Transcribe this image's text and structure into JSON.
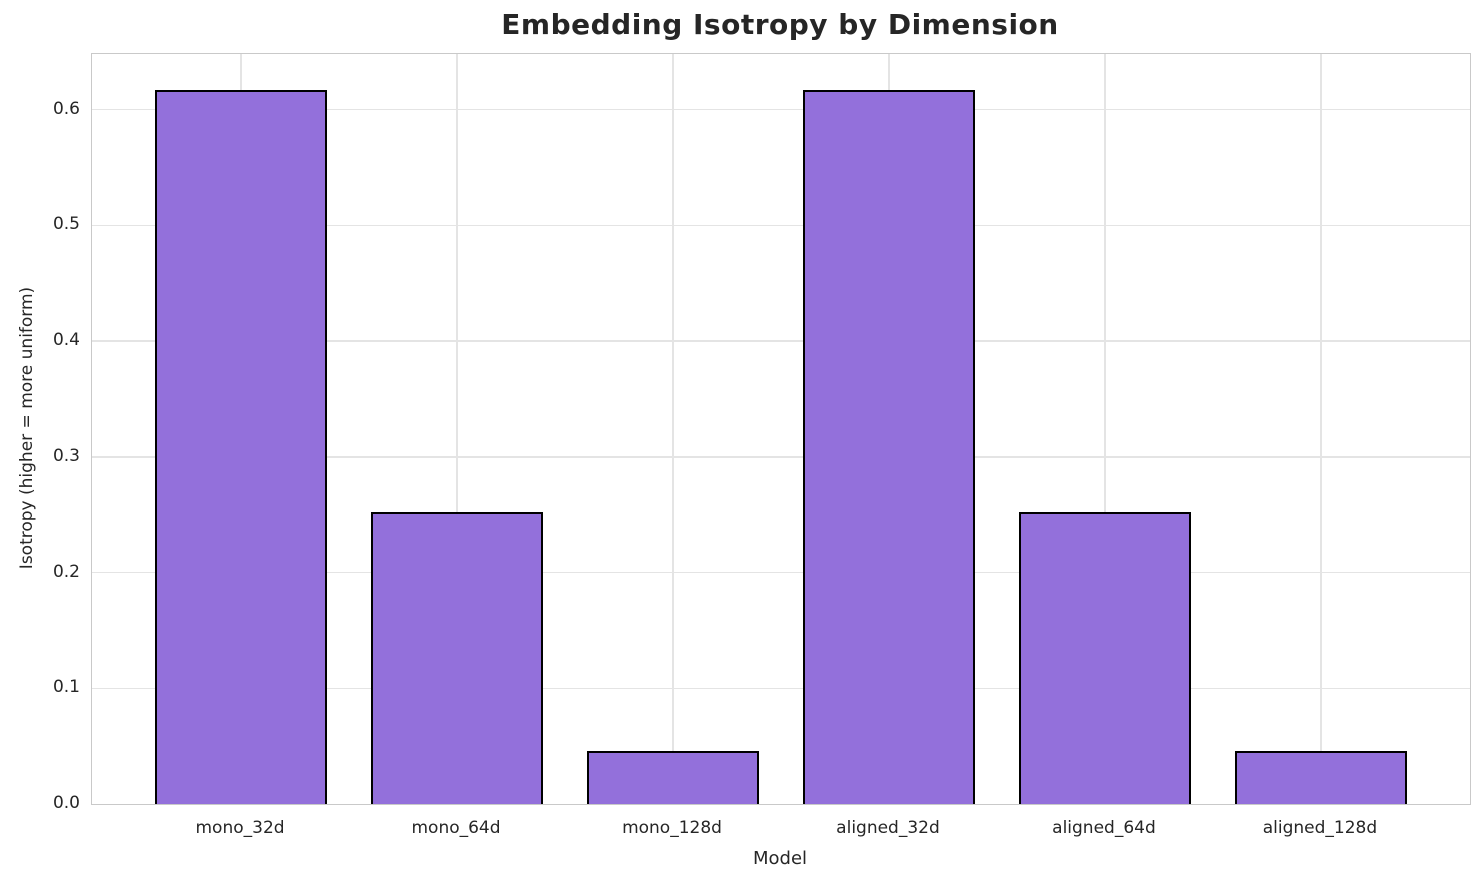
{
  "chart_data": {
    "type": "bar",
    "title": "Embedding Isotropy by Dimension",
    "xlabel": "Model",
    "ylabel": "Isotropy (higher = more uniform)",
    "categories": [
      "mono_32d",
      "mono_64d",
      "mono_128d",
      "aligned_32d",
      "aligned_64d",
      "aligned_128d"
    ],
    "values": [
      0.617,
      0.252,
      0.046,
      0.617,
      0.252,
      0.046
    ],
    "yticks": [
      0.0,
      0.1,
      0.2,
      0.3,
      0.4,
      0.5,
      0.6
    ],
    "ytick_labels": [
      "0.0",
      "0.1",
      "0.2",
      "0.3",
      "0.4",
      "0.5",
      "0.6"
    ],
    "ylim": [
      0,
      0.648
    ],
    "grid": true,
    "legend": false,
    "bar_color": "#9370DB",
    "bar_edge_color": "#000000",
    "grid_color": "#e4e4e4",
    "spine_color": "#c9c9c9",
    "text_color": "#262626",
    "background_color": "#ffffff"
  }
}
